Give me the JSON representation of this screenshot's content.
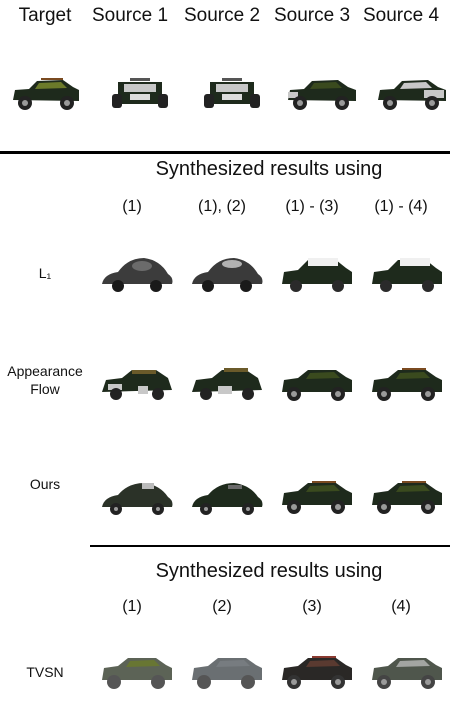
{
  "header": {
    "labels": [
      "Target",
      "Source 1",
      "Source 2",
      "Source 3",
      "Source 4"
    ]
  },
  "section1": {
    "title": "Synthesized results using",
    "columns": [
      "(1)",
      "(1), (2)",
      "(1) - (3)",
      "(1) - (4)"
    ],
    "rows": [
      {
        "label": "L₁"
      },
      {
        "label": "Appearance Flow"
      },
      {
        "label": "Ours"
      }
    ]
  },
  "section2": {
    "title": "Synthesized results using",
    "columns": [
      "(1)",
      "(2)",
      "(3)",
      "(4)"
    ],
    "rows": [
      {
        "label": "TVSN"
      }
    ]
  },
  "colors": {
    "body_dark": "#1e2a1c",
    "body_olive": "#3a4a1e",
    "silver": "#c8c8c8",
    "wheel": "#222222",
    "rim": "#9a9a9a",
    "blur_gray": "#3c3c3c",
    "rule": "#000000"
  }
}
